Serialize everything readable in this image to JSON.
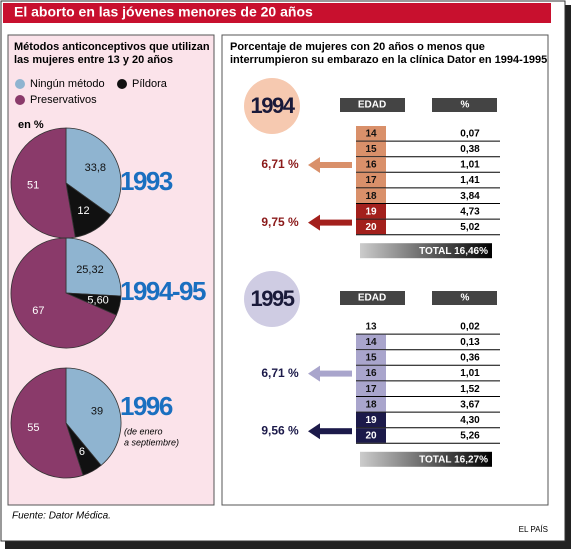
{
  "title": "El aborto en las jóvenes menores de 20 años",
  "left_panel": {
    "heading": [
      "Métodos anticonceptivos que utilizan",
      "las mujeres entre 13 y 20 años"
    ],
    "unit": "en %",
    "categories": [
      "Ningún método",
      "Píldora",
      "Preservativos"
    ],
    "colors": [
      "#8fb4d0",
      "#111111",
      "#8a3a6a"
    ]
  },
  "chart_data": [
    {
      "type": "pie",
      "title": "1993",
      "values": [
        33.8,
        12,
        51
      ],
      "value_labels": [
        "33,8",
        "12",
        "51"
      ]
    },
    {
      "type": "pie",
      "title": "1994-95",
      "values": [
        25.32,
        5.6,
        67
      ],
      "value_labels": [
        "25,32",
        "5,60",
        "67"
      ]
    },
    {
      "type": "pie",
      "title": "1996",
      "subtitle": [
        "(de enero",
        "a septiembre)"
      ],
      "values": [
        39,
        6,
        55
      ]
    }
  ],
  "right_panel": {
    "heading": [
      "Porcentaje de mujeres con 20 años o menos que",
      "interrumpieron su embarazo en la clínica Dator en 1994-1995"
    ],
    "tables": [
      {
        "year": "1994",
        "year_color": "#f6c9b0",
        "columns": [
          "EDAD",
          "%"
        ],
        "rows": [
          [
            "14",
            "0,07"
          ],
          [
            "15",
            "0,38"
          ],
          [
            "16",
            "1,01"
          ],
          [
            "17",
            "1,41"
          ],
          [
            "18",
            "3,84"
          ],
          [
            "19",
            "4,73"
          ],
          [
            "20",
            "5,02"
          ]
        ],
        "row_colors": [
          "#d9906a",
          "#d9906a",
          "#d9906a",
          "#d9906a",
          "#d9906a",
          "#a3201c",
          "#a3201c"
        ],
        "total": "TOTAL 16,46%",
        "callouts": [
          {
            "label": "6,71 %",
            "color": "#d9906a",
            "text_color": "#8b1a1a"
          },
          {
            "label": "9,75 %",
            "color": "#a3201c",
            "text_color": "#8b1a1a"
          }
        ]
      },
      {
        "year": "1995",
        "year_color": "#cfcce3",
        "columns": [
          "EDAD",
          "%"
        ],
        "rows": [
          [
            "13",
            "0,02"
          ],
          [
            "14",
            "0,13"
          ],
          [
            "15",
            "0,36"
          ],
          [
            "16",
            "1,01"
          ],
          [
            "17",
            "1,52"
          ],
          [
            "18",
            "3,67"
          ],
          [
            "19",
            "4,30"
          ],
          [
            "20",
            "5,26"
          ]
        ],
        "row_colors": [
          null,
          "#a9a5cc",
          "#a9a5cc",
          "#a9a5cc",
          "#a9a5cc",
          "#a9a5cc",
          "#1c1a4a",
          "#1c1a4a"
        ],
        "total": "TOTAL 16,27%",
        "callouts": [
          {
            "label": "6,71 %",
            "color": "#a9a5cc",
            "text_color": "#1c1a4a"
          },
          {
            "label": "9,56 %",
            "color": "#1c1a4a",
            "text_color": "#1c1a4a"
          }
        ]
      }
    ]
  },
  "source": "Fuente: Dator Médica.",
  "credit": "EL PAÍS"
}
